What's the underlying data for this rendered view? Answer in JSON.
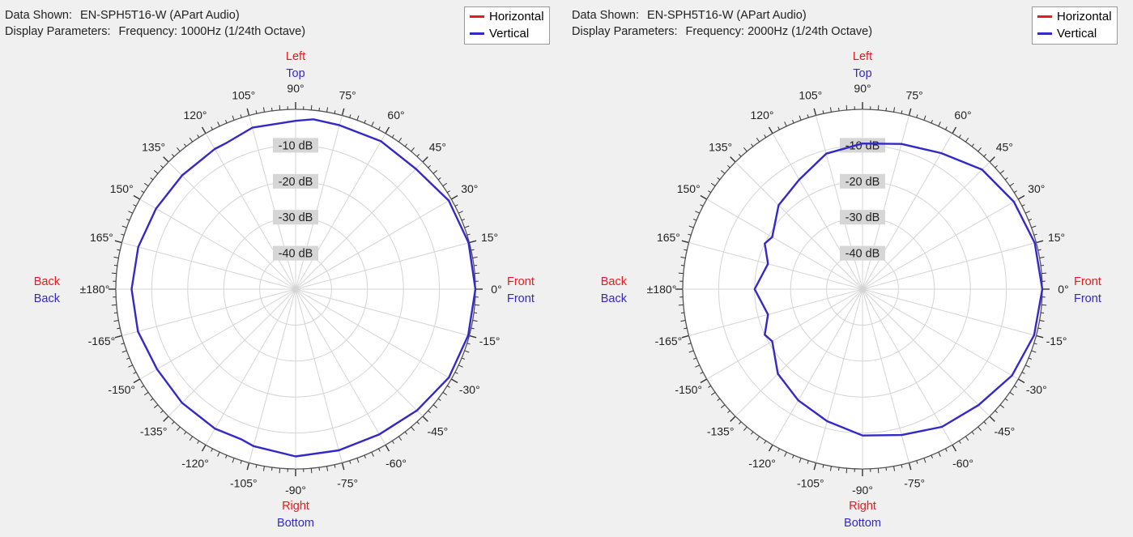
{
  "colors": {
    "horizontal": "#e8191f",
    "vertical": "#3328c8",
    "grid": "#d4d4d4",
    "ring_fill": "#ffffff"
  },
  "charts": [
    {
      "info": {
        "data_label": "Data Shown:",
        "data_value": "EN-SPH5T16-W (APart Audio)",
        "params_label": "Display Parameters:",
        "params_value": "Frequency: 1000Hz (1/24th Octave)"
      },
      "legend": [
        "Horizontal",
        "Vertical"
      ],
      "labels": {
        "left": "Left",
        "top": "Top",
        "right": "Right",
        "bottom": "Bottom",
        "front_h": "Front",
        "front_v": "Front",
        "back_h": "Back",
        "back_v": "Back"
      },
      "db_labels": [
        "-10 dB",
        "-20 dB",
        "-30 dB",
        "-40 dB"
      ],
      "angle_labels": [
        "0°",
        "15°",
        "30°",
        "45°",
        "60°",
        "75°",
        "90°",
        "105°",
        "120°",
        "135°",
        "150°",
        "165°",
        "±180°",
        "-165°",
        "-150°",
        "-135°",
        "-120°",
        "-105°",
        "-90°",
        "-75°",
        "-60°",
        "-45°",
        "-30°",
        "-15°"
      ]
    },
    {
      "info": {
        "data_label": "Data Shown:",
        "data_value": "EN-SPH5T16-W (APart Audio)",
        "params_label": "Display Parameters:",
        "params_value": "Frequency: 2000Hz (1/24th Octave)"
      },
      "legend": [
        "Horizontal",
        "Vertical"
      ],
      "labels": {
        "left": "Left",
        "top": "Top",
        "right": "Right",
        "bottom": "Bottom",
        "front_h": "Front",
        "front_v": "Front",
        "back_h": "Back",
        "back_v": "Back"
      },
      "db_labels": [
        "-10 dB",
        "-20 dB",
        "-30 dB",
        "-40 dB"
      ],
      "angle_labels": [
        "0°",
        "15°",
        "30°",
        "45°",
        "60°",
        "75°",
        "90°",
        "105°",
        "120°",
        "135°",
        "150°",
        "165°",
        "±180°",
        "-165°",
        "-150°",
        "-135°",
        "-120°",
        "-105°",
        "-90°",
        "-75°",
        "-60°",
        "-45°",
        "-30°",
        "-15°"
      ]
    }
  ],
  "chart_data": [
    {
      "type": "polar",
      "title": "EN-SPH5T16-W (APart Audio) — 1000Hz (1/24th Octave)",
      "radial_axis": {
        "min_db": -50,
        "max_db": 0,
        "rings_db": [
          -10,
          -20,
          -30,
          -40
        ]
      },
      "angle_axis": {
        "zero": "right",
        "direction": "counterclockwise",
        "step_deg": 15
      },
      "series": [
        {
          "name": "Vertical",
          "angles": [
            0,
            15,
            30,
            45,
            60,
            75,
            84,
            90,
            105,
            115,
            120,
            135,
            150,
            165,
            180,
            195,
            210,
            225,
            240,
            250,
            255,
            270,
            285,
            300,
            315,
            330,
            345
          ],
          "values_db": [
            0,
            -0.2,
            -0.8,
            -2.7,
            -2.5,
            -2.8,
            -2.5,
            -3.2,
            -3.5,
            -5,
            -5,
            -5.3,
            -5.2,
            -4.7,
            -4.4,
            -4.6,
            -5.5,
            -5.3,
            -5.2,
            -5.6,
            -4.8,
            -3.5,
            -3.6,
            -3.4,
            -2.3,
            -0.8,
            -0.3
          ]
        }
      ]
    },
    {
      "type": "polar",
      "title": "EN-SPH5T16-W (APart Audio) — 2000Hz (1/24th Octave)",
      "radial_axis": {
        "min_db": -50,
        "max_db": 0,
        "rings_db": [
          -10,
          -20,
          -30,
          -40
        ]
      },
      "angle_axis": {
        "zero": "right",
        "direction": "counterclockwise",
        "step_deg": 15
      },
      "series": [
        {
          "name": "Vertical",
          "angles": [
            0,
            15,
            30,
            45,
            60,
            75,
            90,
            105,
            120,
            135,
            150,
            155,
            165,
            180,
            195,
            205,
            210,
            225,
            240,
            255,
            270,
            285,
            300,
            315,
            330,
            345
          ],
          "values_db": [
            0,
            -0.4,
            -1.4,
            -3,
            -6.3,
            -8.2,
            -9.5,
            -11,
            -14.8,
            -17,
            -21,
            -20,
            -22.8,
            -20,
            -22.8,
            -20,
            -21,
            -16.7,
            -14.3,
            -12,
            -9.3,
            -8,
            -5.8,
            -4.4,
            -2,
            -0.6
          ]
        }
      ]
    }
  ]
}
